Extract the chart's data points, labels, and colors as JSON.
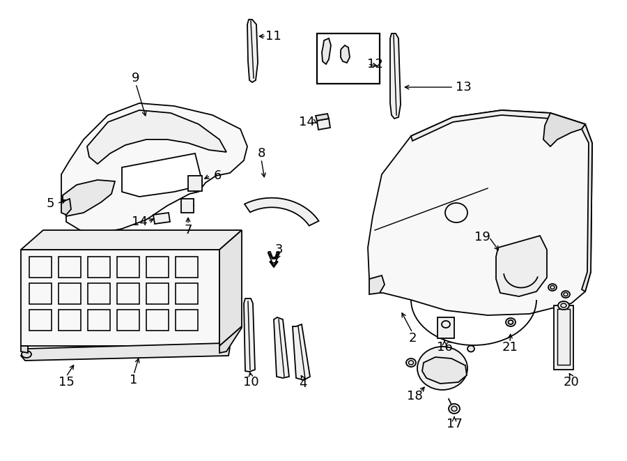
{
  "bg_color": "#ffffff",
  "lc": "#000000",
  "lw": 1.3,
  "figw": 9.0,
  "figh": 6.61,
  "dpi": 100
}
